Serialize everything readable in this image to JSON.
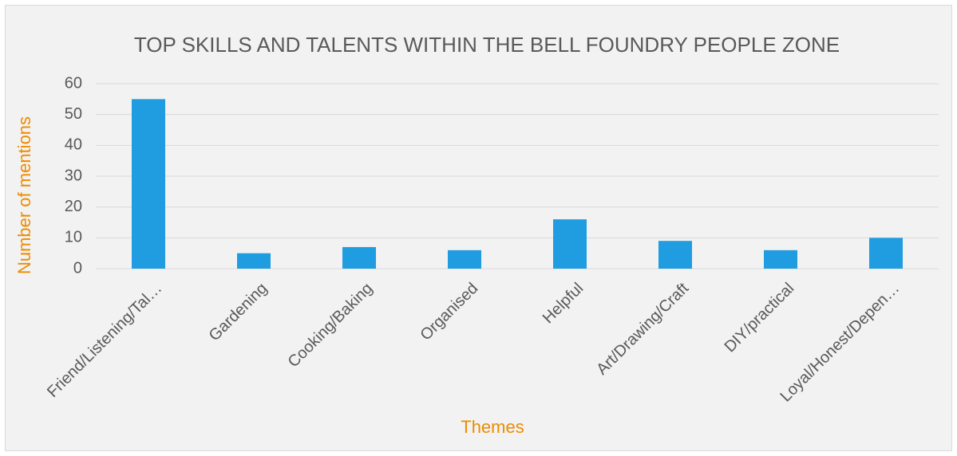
{
  "chart_data": {
    "type": "bar",
    "title": "TOP SKILLS AND TALENTS WITHIN THE BELL FOUNDRY PEOPLE ZONE",
    "x_label": "Themes",
    "y_label": "Number of mentions",
    "categories": [
      "Friend/Listening/Tal…",
      "Gardening",
      "Cooking/Baking",
      "Organised",
      "Helpful",
      "Art/Drawing/Craft",
      "DIY/practical",
      "Loyal/Honest/Depen…"
    ],
    "values": [
      55,
      5,
      7,
      6,
      16,
      9,
      6,
      10
    ],
    "color": "#1f9de0",
    "ylim": [
      0,
      60
    ],
    "yticks": [
      0,
      10,
      20,
      30,
      40,
      50,
      60
    ],
    "grid": true
  }
}
